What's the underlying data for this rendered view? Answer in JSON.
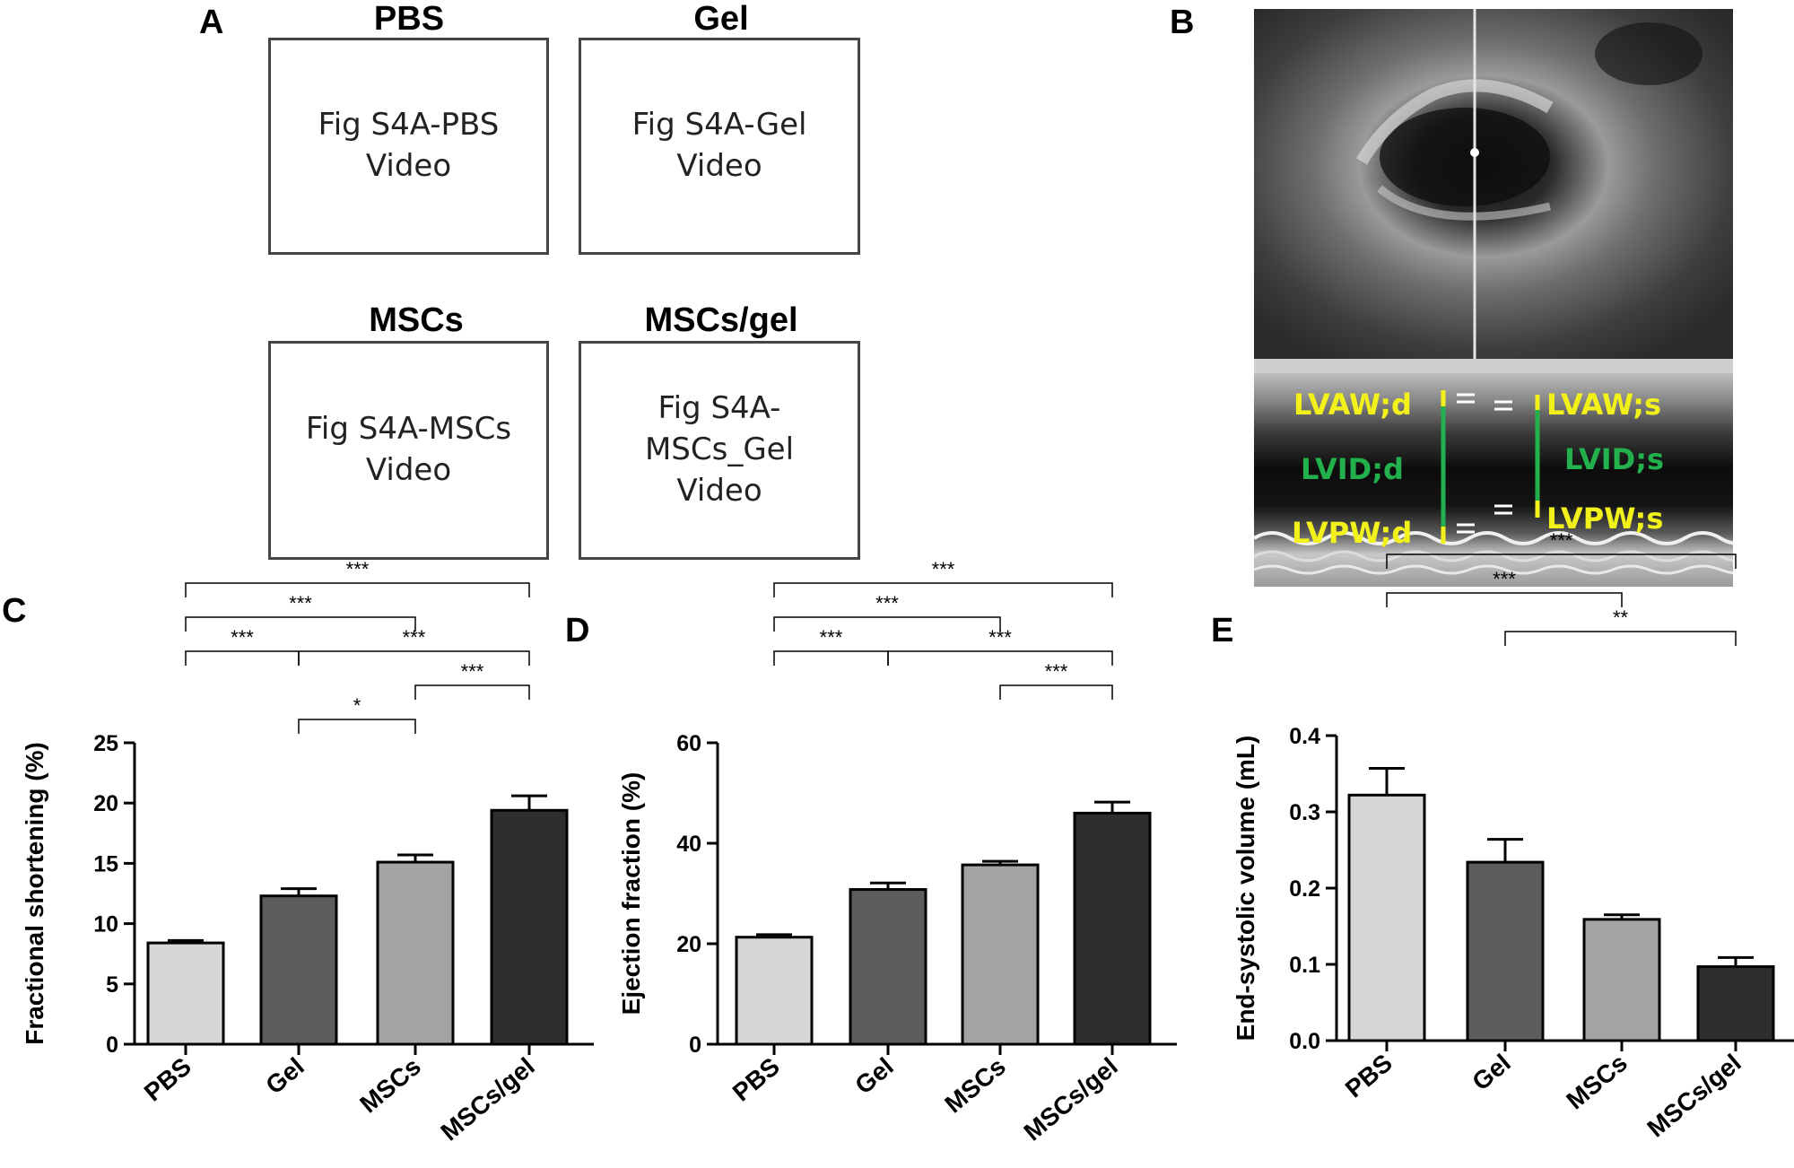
{
  "panel_a": {
    "letter": "A",
    "videos": [
      {
        "title": "PBS",
        "box_text": "Fig S4A-PBS\nVideo"
      },
      {
        "title": "Gel",
        "box_text": "Fig S4A-Gel\nVideo"
      },
      {
        "title": "MSCs",
        "box_text": "Fig S4A-MSCs\nVideo"
      },
      {
        "title": "MSCs/gel",
        "box_text": "Fig S4A-\nMSCs_Gel\nVideo"
      }
    ]
  },
  "panel_b": {
    "letter": "B",
    "labels": {
      "lvaw_d": "LVAW;d",
      "lvid_d": "LVID;d",
      "lvpw_d": "LVPW;d",
      "lvaw_s": "LVAW;s",
      "lvid_s": "LVID;s",
      "lvpw_s": "LVPW;s"
    },
    "colors": {
      "yellow": "#f2f21a",
      "green": "#22b14c"
    }
  },
  "colors": {
    "bar_fills": [
      "#d6d6d6",
      "#5c5c5c",
      "#a3a3a6",
      "#2e2e2e"
    ]
  },
  "chart_data": [
    {
      "panel": "C",
      "type": "bar",
      "categories": [
        "PBS",
        "Gel",
        "MSCs",
        "MSCs/gel"
      ],
      "values": [
        8.4,
        12.3,
        15.1,
        19.4
      ],
      "errors": [
        0.2,
        0.6,
        0.6,
        1.2
      ],
      "ylabel": "Fractional shortening (%)",
      "ylim": [
        0,
        25
      ],
      "yticks": [
        0,
        5,
        10,
        15,
        20,
        25
      ],
      "ytick_labels": [
        "0",
        "5",
        "10",
        "15",
        "20",
        "25"
      ],
      "significance": [
        {
          "from": 0,
          "to": 3,
          "label": "***",
          "level": 1
        },
        {
          "from": 0,
          "to": 2,
          "label": "***",
          "level": 2
        },
        {
          "from": 0,
          "to": 1,
          "label": "***",
          "level": 3
        },
        {
          "from": 1,
          "to": 3,
          "label": "***",
          "level": 3
        },
        {
          "from": 2,
          "to": 3,
          "label": "***",
          "level": 4
        },
        {
          "from": 1,
          "to": 2,
          "label": "*",
          "level": 5
        }
      ]
    },
    {
      "panel": "D",
      "type": "bar",
      "categories": [
        "PBS",
        "Gel",
        "MSCs",
        "MSCs/gel"
      ],
      "values": [
        21.3,
        30.8,
        35.7,
        46.0
      ],
      "errors": [
        0.5,
        1.3,
        0.7,
        2.2
      ],
      "ylabel": "Ejection fraction (%)",
      "ylim": [
        0,
        60
      ],
      "yticks": [
        0,
        20,
        40,
        60
      ],
      "ytick_labels": [
        "0",
        "20",
        "40",
        "60"
      ],
      "significance": [
        {
          "from": 0,
          "to": 3,
          "label": "***",
          "level": 1
        },
        {
          "from": 0,
          "to": 2,
          "label": "***",
          "level": 2
        },
        {
          "from": 0,
          "to": 1,
          "label": "***",
          "level": 3
        },
        {
          "from": 1,
          "to": 3,
          "label": "***",
          "level": 3
        },
        {
          "from": 2,
          "to": 3,
          "label": "***",
          "level": 4
        }
      ]
    },
    {
      "panel": "E",
      "type": "bar",
      "categories": [
        "PBS",
        "Gel",
        "MSCs",
        "MSCs/gel"
      ],
      "values": [
        0.322,
        0.234,
        0.159,
        0.097
      ],
      "errors": [
        0.035,
        0.03,
        0.006,
        0.012
      ],
      "ylabel": "End-systolic volume (mL)",
      "ylim": [
        0,
        0.4
      ],
      "yticks": [
        0,
        0.1,
        0.2,
        0.3,
        0.4
      ],
      "ytick_labels": [
        "0.0",
        "0.1",
        "0.2",
        "0.3",
        "0.4"
      ],
      "significance": [
        {
          "from": 0,
          "to": 3,
          "label": "***",
          "level": 1
        },
        {
          "from": 0,
          "to": 2,
          "label": "***",
          "level": 2
        },
        {
          "from": 1,
          "to": 3,
          "label": "**",
          "level": 3
        }
      ]
    }
  ]
}
